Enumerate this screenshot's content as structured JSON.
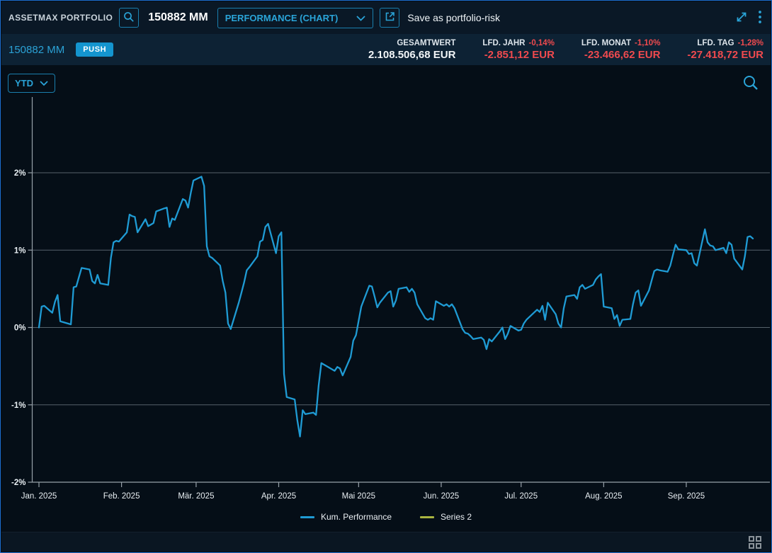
{
  "colors": {
    "accent_cyan": "#2aa4d8",
    "negative_red": "#ef4a4e",
    "push_blue": "#1495cf",
    "line_cyan": "#1f9bd4",
    "series2_olive": "#a9b440",
    "grid_gray": "#56616b",
    "axis_gray": "#97a1a9"
  },
  "topbar": {
    "app_title": "ASSETMAX PORTFOLIO",
    "portfolio_id": "150882 MM",
    "view_select": {
      "value": "PERFORMANCE (CHART)"
    },
    "save_label": "Save as portfolio-risk"
  },
  "summary": {
    "portfolio_label": "150882 MM",
    "push_badge": "PUSH",
    "stats": [
      {
        "label": "GESAMTWERT",
        "pct": "",
        "value": "2.108.506,68 EUR",
        "negative": false
      },
      {
        "label": "LFD. JAHR",
        "pct": "-0,14%",
        "value": "-2.851,12 EUR",
        "negative": true
      },
      {
        "label": "LFD. MONAT",
        "pct": "-1,10%",
        "value": "-23.466,62 EUR",
        "negative": true
      },
      {
        "label": "LFD. TAG",
        "pct": "-1,28%",
        "value": "-27.418,72 EUR",
        "negative": true
      }
    ]
  },
  "chart": {
    "range_select": "YTD"
  },
  "chart_data": {
    "type": "line",
    "x_type": "date",
    "year": 2025,
    "x_tick_labels": [
      "Jan. 2025",
      "Feb. 2025",
      "Mär. 2025",
      "Apr. 2025",
      "Mai 2025",
      "Jun. 2025",
      "Jul. 2025",
      "Aug. 2025",
      "Sep. 2025"
    ],
    "y_tick_labels": [
      "2%",
      "1%",
      "0%",
      "-1%",
      "-2%"
    ],
    "ylim": [
      -2,
      2
    ],
    "unit": "%",
    "grid": true,
    "legend_position": "bottom-center",
    "series": [
      {
        "name": "Kum. Performance",
        "color": "#1f9bd4",
        "points": [
          [
            "01-01",
            0.0
          ],
          [
            "01-02",
            0.27
          ],
          [
            "01-03",
            0.28
          ],
          [
            "01-06",
            0.19
          ],
          [
            "01-07",
            0.33
          ],
          [
            "01-08",
            0.42
          ],
          [
            "01-09",
            0.08
          ],
          [
            "01-10",
            0.07
          ],
          [
            "01-13",
            0.04
          ],
          [
            "01-14",
            0.52
          ],
          [
            "01-15",
            0.53
          ],
          [
            "01-16",
            0.65
          ],
          [
            "01-17",
            0.77
          ],
          [
            "01-20",
            0.75
          ],
          [
            "01-21",
            0.6
          ],
          [
            "01-22",
            0.57
          ],
          [
            "01-23",
            0.68
          ],
          [
            "01-24",
            0.57
          ],
          [
            "01-27",
            0.55
          ],
          [
            "01-28",
            0.9
          ],
          [
            "01-29",
            1.1
          ],
          [
            "01-30",
            1.12
          ],
          [
            "01-31",
            1.11
          ],
          [
            "02-03",
            1.23
          ],
          [
            "02-04",
            1.46
          ],
          [
            "02-05",
            1.44
          ],
          [
            "02-06",
            1.43
          ],
          [
            "02-07",
            1.23
          ],
          [
            "02-10",
            1.4
          ],
          [
            "02-11",
            1.31
          ],
          [
            "02-12",
            1.33
          ],
          [
            "02-13",
            1.35
          ],
          [
            "02-14",
            1.5
          ],
          [
            "02-17",
            1.54
          ],
          [
            "02-18",
            1.55
          ],
          [
            "02-19",
            1.3
          ],
          [
            "02-20",
            1.41
          ],
          [
            "02-21",
            1.39
          ],
          [
            "02-24",
            1.66
          ],
          [
            "02-25",
            1.64
          ],
          [
            "02-26",
            1.55
          ],
          [
            "02-27",
            1.74
          ],
          [
            "02-28",
            1.9
          ],
          [
            "03-03",
            1.95
          ],
          [
            "03-04",
            1.83
          ],
          [
            "03-05",
            1.05
          ],
          [
            "03-06",
            0.92
          ],
          [
            "03-07",
            0.9
          ],
          [
            "03-10",
            0.8
          ],
          [
            "03-11",
            0.6
          ],
          [
            "03-12",
            0.45
          ],
          [
            "03-13",
            0.05
          ],
          [
            "03-14",
            -0.02
          ],
          [
            "03-17",
            0.32
          ],
          [
            "03-18",
            0.45
          ],
          [
            "03-19",
            0.58
          ],
          [
            "03-20",
            0.74
          ],
          [
            "03-21",
            0.78
          ],
          [
            "03-24",
            0.92
          ],
          [
            "03-25",
            1.11
          ],
          [
            "03-26",
            1.13
          ],
          [
            "03-27",
            1.3
          ],
          [
            "03-28",
            1.34
          ],
          [
            "03-31",
            0.96
          ],
          [
            "04-01",
            1.18
          ],
          [
            "04-02",
            1.23
          ],
          [
            "04-03",
            -0.6
          ],
          [
            "04-04",
            -0.9
          ],
          [
            "04-07",
            -0.93
          ],
          [
            "04-08",
            -1.2
          ],
          [
            "04-09",
            -1.41
          ],
          [
            "04-10",
            -1.07
          ],
          [
            "04-11",
            -1.12
          ],
          [
            "04-14",
            -1.1
          ],
          [
            "04-15",
            -1.13
          ],
          [
            "04-16",
            -0.75
          ],
          [
            "04-17",
            -0.46
          ],
          [
            "04-22",
            -0.56
          ],
          [
            "04-23",
            -0.51
          ],
          [
            "04-24",
            -0.53
          ],
          [
            "04-25",
            -0.62
          ],
          [
            "04-28",
            -0.38
          ],
          [
            "04-29",
            -0.17
          ],
          [
            "04-30",
            -0.1
          ],
          [
            "05-02",
            0.27
          ],
          [
            "05-05",
            0.54
          ],
          [
            "05-06",
            0.53
          ],
          [
            "05-07",
            0.4
          ],
          [
            "05-08",
            0.26
          ],
          [
            "05-09",
            0.32
          ],
          [
            "05-12",
            0.45
          ],
          [
            "05-13",
            0.47
          ],
          [
            "05-14",
            0.27
          ],
          [
            "05-15",
            0.35
          ],
          [
            "05-16",
            0.5
          ],
          [
            "05-19",
            0.52
          ],
          [
            "05-20",
            0.46
          ],
          [
            "05-21",
            0.5
          ],
          [
            "05-22",
            0.45
          ],
          [
            "05-23",
            0.3
          ],
          [
            "05-26",
            0.12
          ],
          [
            "05-27",
            0.1
          ],
          [
            "05-28",
            0.12
          ],
          [
            "05-29",
            0.1
          ],
          [
            "05-30",
            0.34
          ],
          [
            "06-02",
            0.28
          ],
          [
            "06-03",
            0.3
          ],
          [
            "06-04",
            0.27
          ],
          [
            "06-05",
            0.3
          ],
          [
            "06-06",
            0.25
          ],
          [
            "06-09",
            -0.02
          ],
          [
            "06-10",
            -0.07
          ],
          [
            "06-11",
            -0.08
          ],
          [
            "06-12",
            -0.11
          ],
          [
            "06-13",
            -0.15
          ],
          [
            "06-16",
            -0.13
          ],
          [
            "06-17",
            -0.16
          ],
          [
            "06-18",
            -0.28
          ],
          [
            "06-19",
            -0.15
          ],
          [
            "06-20",
            -0.18
          ],
          [
            "06-23",
            -0.05
          ],
          [
            "06-24",
            0.0
          ],
          [
            "06-25",
            -0.15
          ],
          [
            "06-26",
            -0.08
          ],
          [
            "06-27",
            0.02
          ],
          [
            "06-30",
            -0.04
          ],
          [
            "07-01",
            -0.03
          ],
          [
            "07-02",
            0.05
          ],
          [
            "07-03",
            0.1
          ],
          [
            "07-07",
            0.23
          ],
          [
            "07-08",
            0.2
          ],
          [
            "07-09",
            0.28
          ],
          [
            "07-10",
            0.1
          ],
          [
            "07-11",
            0.32
          ],
          [
            "07-14",
            0.17
          ],
          [
            "07-15",
            0.05
          ],
          [
            "07-16",
            0.0
          ],
          [
            "07-17",
            0.25
          ],
          [
            "07-18",
            0.4
          ],
          [
            "07-21",
            0.42
          ],
          [
            "07-22",
            0.37
          ],
          [
            "07-23",
            0.52
          ],
          [
            "07-24",
            0.55
          ],
          [
            "07-25",
            0.5
          ],
          [
            "07-28",
            0.55
          ],
          [
            "07-29",
            0.62
          ],
          [
            "07-30",
            0.66
          ],
          [
            "07-31",
            0.69
          ],
          [
            "08-01",
            0.27
          ],
          [
            "08-04",
            0.25
          ],
          [
            "08-05",
            0.11
          ],
          [
            "08-06",
            0.16
          ],
          [
            "08-07",
            0.02
          ],
          [
            "08-08",
            0.1
          ],
          [
            "08-11",
            0.11
          ],
          [
            "08-12",
            0.3
          ],
          [
            "08-13",
            0.45
          ],
          [
            "08-14",
            0.48
          ],
          [
            "08-15",
            0.28
          ],
          [
            "08-18",
            0.48
          ],
          [
            "08-19",
            0.61
          ],
          [
            "08-20",
            0.73
          ],
          [
            "08-21",
            0.75
          ],
          [
            "08-22",
            0.74
          ],
          [
            "08-25",
            0.72
          ],
          [
            "08-26",
            0.8
          ],
          [
            "08-27",
            0.94
          ],
          [
            "08-28",
            1.07
          ],
          [
            "08-29",
            1.01
          ],
          [
            "09-01",
            1.0
          ],
          [
            "09-02",
            0.95
          ],
          [
            "09-03",
            0.96
          ],
          [
            "09-04",
            0.83
          ],
          [
            "09-05",
            0.8
          ],
          [
            "09-08",
            1.27
          ],
          [
            "09-09",
            1.1
          ],
          [
            "09-10",
            1.06
          ],
          [
            "09-11",
            1.05
          ],
          [
            "09-12",
            1.0
          ],
          [
            "09-15",
            1.03
          ],
          [
            "09-16",
            0.96
          ],
          [
            "09-17",
            1.1
          ],
          [
            "09-18",
            1.07
          ],
          [
            "09-19",
            0.89
          ],
          [
            "09-22",
            0.75
          ],
          [
            "09-23",
            0.92
          ],
          [
            "09-24",
            1.17
          ],
          [
            "09-25",
            1.18
          ],
          [
            "09-26",
            1.15
          ]
        ]
      },
      {
        "name": "Series 2",
        "color": "#a9b440",
        "points": []
      }
    ]
  }
}
